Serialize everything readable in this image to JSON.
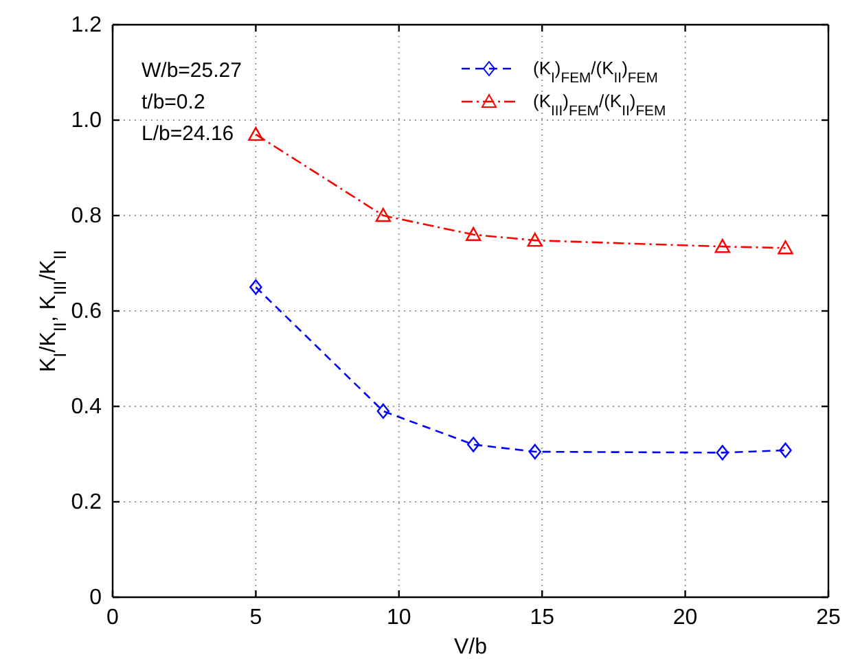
{
  "chart_data": {
    "type": "line",
    "xlabel": "V/b",
    "ylabel": "K$_{I}$/K$_{II}$, K$_{III}$/K$_{II}$",
    "xlim": [
      0,
      25
    ],
    "xticks": [
      0,
      5,
      10,
      15,
      20,
      25
    ],
    "ylim": [
      0,
      1.2
    ],
    "yticks": [
      0,
      {
        "value": 0.2,
        "label": "0.2"
      },
      {
        "value": 0.4,
        "label": "0.4"
      },
      {
        "value": 0.6,
        "label": "0.6"
      },
      {
        "value": 0.8,
        "label": "0.8"
      },
      {
        "value": 1.0,
        "label": "1.0"
      },
      {
        "value": 1.2,
        "label": "1.2"
      }
    ],
    "grid": true,
    "legend": "top right",
    "annotations": [
      "W/b=25.27",
      "t/b=0.2",
      "L/b=24.16"
    ],
    "series": [
      {
        "name": "(K$_{I}$)$_{FEM}$/(K$_{II}$)$_{FEM}$",
        "color": "#0000ff",
        "marker": "diamond",
        "line_style": "dashed",
        "x": [
          5.0,
          9.45,
          12.6,
          14.75,
          21.3,
          23.5
        ],
        "values": [
          0.65,
          0.39,
          0.32,
          0.305,
          0.303,
          0.308
        ]
      },
      {
        "name": "(K$_{III}$)$_{FEM}$/(K$_{II}$)$_{FEM}$",
        "color": "#ff0000",
        "marker": "triangle",
        "line_style": "dashdot",
        "x": [
          5.0,
          9.45,
          12.6,
          14.75,
          21.3,
          23.5
        ],
        "values": [
          0.97,
          0.8,
          0.76,
          0.748,
          0.735,
          0.732
        ]
      }
    ]
  }
}
